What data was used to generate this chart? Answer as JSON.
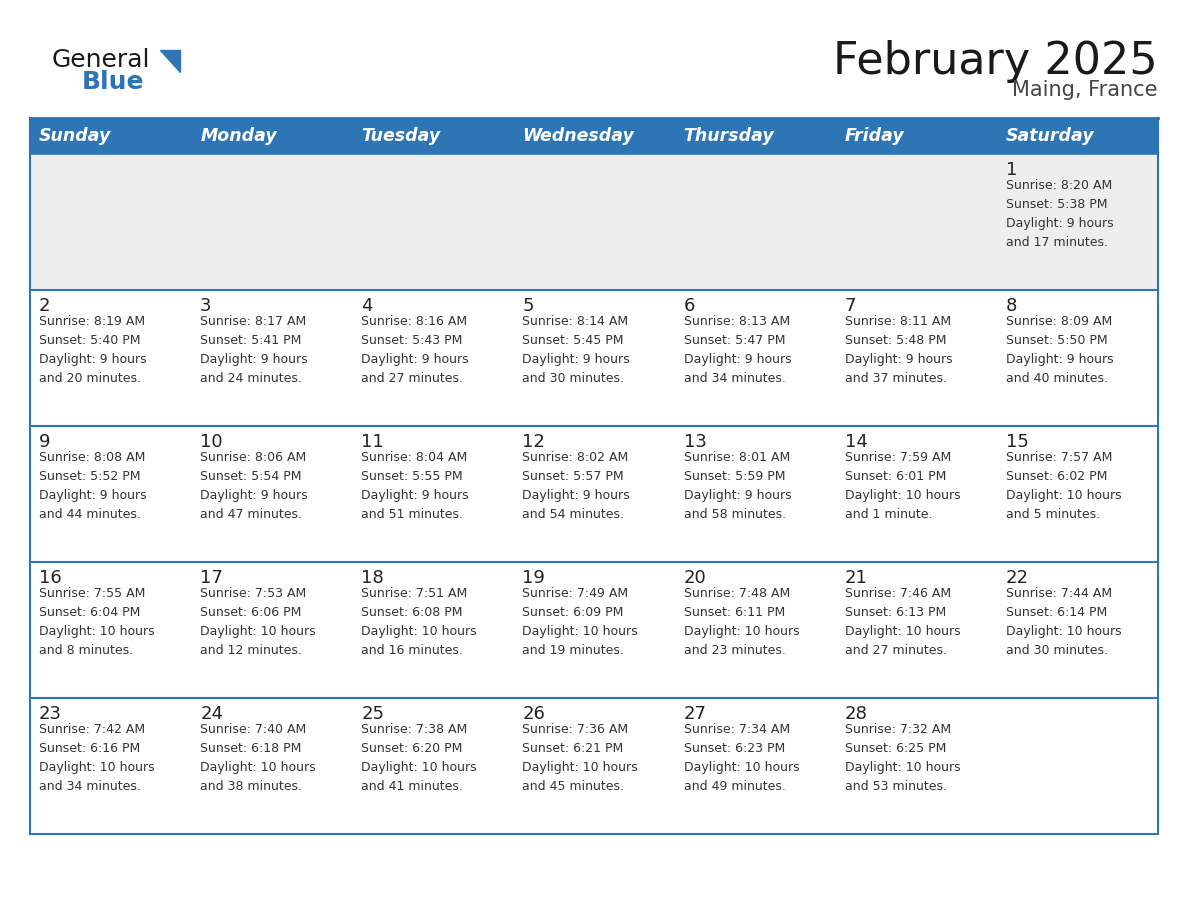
{
  "title": "February 2025",
  "subtitle": "Maing, France",
  "header_bg": "#2e75b6",
  "header_text": "#ffffff",
  "header_days": [
    "Sunday",
    "Monday",
    "Tuesday",
    "Wednesday",
    "Thursday",
    "Friday",
    "Saturday"
  ],
  "row1_bg": "#eeeeee",
  "row_bg": "#ffffff",
  "cell_text_color": "#333333",
  "day_number_color": "#222222",
  "border_color": "#2e75b6",
  "calendar": [
    [
      {
        "day": null,
        "info": null
      },
      {
        "day": null,
        "info": null
      },
      {
        "day": null,
        "info": null
      },
      {
        "day": null,
        "info": null
      },
      {
        "day": null,
        "info": null
      },
      {
        "day": null,
        "info": null
      },
      {
        "day": 1,
        "info": "Sunrise: 8:20 AM\nSunset: 5:38 PM\nDaylight: 9 hours\nand 17 minutes."
      }
    ],
    [
      {
        "day": 2,
        "info": "Sunrise: 8:19 AM\nSunset: 5:40 PM\nDaylight: 9 hours\nand 20 minutes."
      },
      {
        "day": 3,
        "info": "Sunrise: 8:17 AM\nSunset: 5:41 PM\nDaylight: 9 hours\nand 24 minutes."
      },
      {
        "day": 4,
        "info": "Sunrise: 8:16 AM\nSunset: 5:43 PM\nDaylight: 9 hours\nand 27 minutes."
      },
      {
        "day": 5,
        "info": "Sunrise: 8:14 AM\nSunset: 5:45 PM\nDaylight: 9 hours\nand 30 minutes."
      },
      {
        "day": 6,
        "info": "Sunrise: 8:13 AM\nSunset: 5:47 PM\nDaylight: 9 hours\nand 34 minutes."
      },
      {
        "day": 7,
        "info": "Sunrise: 8:11 AM\nSunset: 5:48 PM\nDaylight: 9 hours\nand 37 minutes."
      },
      {
        "day": 8,
        "info": "Sunrise: 8:09 AM\nSunset: 5:50 PM\nDaylight: 9 hours\nand 40 minutes."
      }
    ],
    [
      {
        "day": 9,
        "info": "Sunrise: 8:08 AM\nSunset: 5:52 PM\nDaylight: 9 hours\nand 44 minutes."
      },
      {
        "day": 10,
        "info": "Sunrise: 8:06 AM\nSunset: 5:54 PM\nDaylight: 9 hours\nand 47 minutes."
      },
      {
        "day": 11,
        "info": "Sunrise: 8:04 AM\nSunset: 5:55 PM\nDaylight: 9 hours\nand 51 minutes."
      },
      {
        "day": 12,
        "info": "Sunrise: 8:02 AM\nSunset: 5:57 PM\nDaylight: 9 hours\nand 54 minutes."
      },
      {
        "day": 13,
        "info": "Sunrise: 8:01 AM\nSunset: 5:59 PM\nDaylight: 9 hours\nand 58 minutes."
      },
      {
        "day": 14,
        "info": "Sunrise: 7:59 AM\nSunset: 6:01 PM\nDaylight: 10 hours\nand 1 minute."
      },
      {
        "day": 15,
        "info": "Sunrise: 7:57 AM\nSunset: 6:02 PM\nDaylight: 10 hours\nand 5 minutes."
      }
    ],
    [
      {
        "day": 16,
        "info": "Sunrise: 7:55 AM\nSunset: 6:04 PM\nDaylight: 10 hours\nand 8 minutes."
      },
      {
        "day": 17,
        "info": "Sunrise: 7:53 AM\nSunset: 6:06 PM\nDaylight: 10 hours\nand 12 minutes."
      },
      {
        "day": 18,
        "info": "Sunrise: 7:51 AM\nSunset: 6:08 PM\nDaylight: 10 hours\nand 16 minutes."
      },
      {
        "day": 19,
        "info": "Sunrise: 7:49 AM\nSunset: 6:09 PM\nDaylight: 10 hours\nand 19 minutes."
      },
      {
        "day": 20,
        "info": "Sunrise: 7:48 AM\nSunset: 6:11 PM\nDaylight: 10 hours\nand 23 minutes."
      },
      {
        "day": 21,
        "info": "Sunrise: 7:46 AM\nSunset: 6:13 PM\nDaylight: 10 hours\nand 27 minutes."
      },
      {
        "day": 22,
        "info": "Sunrise: 7:44 AM\nSunset: 6:14 PM\nDaylight: 10 hours\nand 30 minutes."
      }
    ],
    [
      {
        "day": 23,
        "info": "Sunrise: 7:42 AM\nSunset: 6:16 PM\nDaylight: 10 hours\nand 34 minutes."
      },
      {
        "day": 24,
        "info": "Sunrise: 7:40 AM\nSunset: 6:18 PM\nDaylight: 10 hours\nand 38 minutes."
      },
      {
        "day": 25,
        "info": "Sunrise: 7:38 AM\nSunset: 6:20 PM\nDaylight: 10 hours\nand 41 minutes."
      },
      {
        "day": 26,
        "info": "Sunrise: 7:36 AM\nSunset: 6:21 PM\nDaylight: 10 hours\nand 45 minutes."
      },
      {
        "day": 27,
        "info": "Sunrise: 7:34 AM\nSunset: 6:23 PM\nDaylight: 10 hours\nand 49 minutes."
      },
      {
        "day": 28,
        "info": "Sunrise: 7:32 AM\nSunset: 6:25 PM\nDaylight: 10 hours\nand 53 minutes."
      },
      {
        "day": null,
        "info": null
      }
    ]
  ],
  "logo_general_color": "#1a1a1a",
  "logo_blue_color": "#2e75b6",
  "figsize": [
    11.88,
    9.18
  ],
  "dpi": 100
}
